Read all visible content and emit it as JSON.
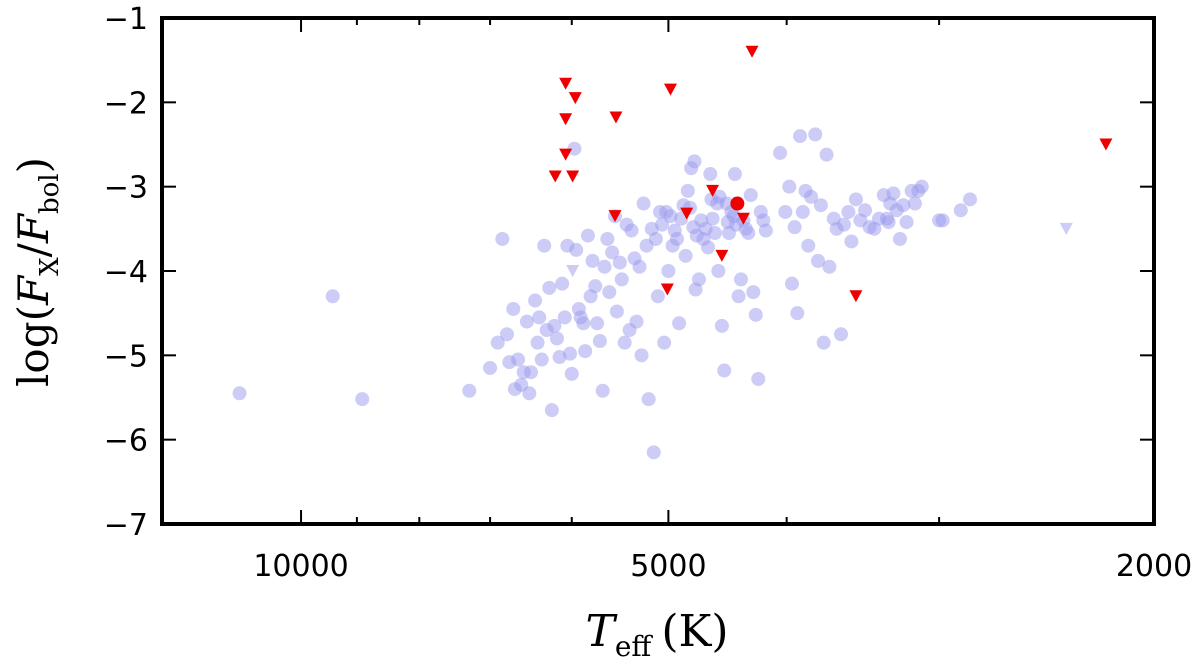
{
  "chart_data": {
    "type": "scatter",
    "title": "",
    "xlabel": {
      "symbol": "T",
      "sub": "eff",
      "unit": "(K)"
    },
    "ylabel": {
      "prefix": "log(",
      "num": "F",
      "num_sub": "X",
      "slash": "/",
      "den": "F",
      "den_sub": "bol",
      "suffix": ")"
    },
    "x_scale": "log",
    "x_reversed": true,
    "xlim": [
      13000,
      2000
    ],
    "ylim": [
      -7,
      -1
    ],
    "x_ticks": [
      {
        "value": 10000,
        "label": "10000"
      },
      {
        "value": 5000,
        "label": "5000"
      },
      {
        "value": 2000,
        "label": "2000"
      }
    ],
    "x_minor_ticks": [
      9000,
      8000,
      7000,
      6000,
      4000,
      3000
    ],
    "y_ticks": [
      {
        "value": -1,
        "label": "−1"
      },
      {
        "value": -2,
        "label": "−2"
      },
      {
        "value": -3,
        "label": "−3"
      },
      {
        "value": -4,
        "label": "−4"
      },
      {
        "value": -5,
        "label": "−5"
      },
      {
        "value": -6,
        "label": "−6"
      },
      {
        "value": -7,
        "label": "−7"
      }
    ],
    "series": [
      {
        "name": "background-detections",
        "marker": "circle",
        "color": "#9999ee",
        "opacity": 0.5,
        "points": [
          [
            11230,
            -5.45
          ],
          [
            9420,
            -4.3
          ],
          [
            8910,
            -5.52
          ],
          [
            7280,
            -5.42
          ],
          [
            7000,
            -5.15
          ],
          [
            6900,
            -4.85
          ],
          [
            6840,
            -3.62
          ],
          [
            6780,
            -4.75
          ],
          [
            6750,
            -5.08
          ],
          [
            6700,
            -4.45
          ],
          [
            6680,
            -5.4
          ],
          [
            6640,
            -5.05
          ],
          [
            6600,
            -5.35
          ],
          [
            6570,
            -5.2
          ],
          [
            6530,
            -4.6
          ],
          [
            6500,
            -5.45
          ],
          [
            6480,
            -5.2
          ],
          [
            6430,
            -4.35
          ],
          [
            6400,
            -4.85
          ],
          [
            6380,
            -4.55
          ],
          [
            6350,
            -5.05
          ],
          [
            6320,
            -3.7
          ],
          [
            6290,
            -4.7
          ],
          [
            6260,
            -4.2
          ],
          [
            6230,
            -5.65
          ],
          [
            6200,
            -4.65
          ],
          [
            6170,
            -4.8
          ],
          [
            6140,
            -5.02
          ],
          [
            6110,
            -4.15
          ],
          [
            6080,
            -4.55
          ],
          [
            6050,
            -3.7
          ],
          [
            6020,
            -4.98
          ],
          [
            6000,
            -5.22
          ],
          [
            5970,
            -2.55
          ],
          [
            5950,
            -3.75
          ],
          [
            5920,
            -4.45
          ],
          [
            5900,
            -4.55
          ],
          [
            5870,
            -4.62
          ],
          [
            5850,
            -4.95
          ],
          [
            5820,
            -3.58
          ],
          [
            5790,
            -4.3
          ],
          [
            5770,
            -3.88
          ],
          [
            5740,
            -4.18
          ],
          [
            5720,
            -4.62
          ],
          [
            5690,
            -4.83
          ],
          [
            5660,
            -5.42
          ],
          [
            5640,
            -3.95
          ],
          [
            5610,
            -3.62
          ],
          [
            5590,
            -4.25
          ],
          [
            5560,
            -3.78
          ],
          [
            5530,
            -3.35
          ],
          [
            5510,
            -4.48
          ],
          [
            5480,
            -3.9
          ],
          [
            5460,
            -4.1
          ],
          [
            5430,
            -4.85
          ],
          [
            5410,
            -3.45
          ],
          [
            5380,
            -4.7
          ],
          [
            5360,
            -3.52
          ],
          [
            5330,
            -3.85
          ],
          [
            5310,
            -4.6
          ],
          [
            5280,
            -3.95
          ],
          [
            5260,
            -5.0
          ],
          [
            5240,
            -3.2
          ],
          [
            5210,
            -3.7
          ],
          [
            5190,
            -5.52
          ],
          [
            5160,
            -3.5
          ],
          [
            5140,
            -6.15
          ],
          [
            5120,
            -3.62
          ],
          [
            5100,
            -4.3
          ],
          [
            5080,
            -3.3
          ],
          [
            5060,
            -3.45
          ],
          [
            5040,
            -4.85
          ],
          [
            5020,
            -3.3
          ],
          [
            5000,
            -4.0
          ],
          [
            4980,
            -3.35
          ],
          [
            4960,
            -3.7
          ],
          [
            4940,
            -3.52
          ],
          [
            4920,
            -3.62
          ],
          [
            4900,
            -4.62
          ],
          [
            4880,
            -3.38
          ],
          [
            4860,
            -3.22
          ],
          [
            4840,
            -3.82
          ],
          [
            4820,
            -3.05
          ],
          [
            4800,
            -3.25
          ],
          [
            4790,
            -2.78
          ],
          [
            4770,
            -3.48
          ],
          [
            4760,
            -2.7
          ],
          [
            4750,
            -4.22
          ],
          [
            4740,
            -3.58
          ],
          [
            4720,
            -4.1
          ],
          [
            4700,
            -3.4
          ],
          [
            4680,
            -3.62
          ],
          [
            4660,
            -3.5
          ],
          [
            4640,
            -3.72
          ],
          [
            4620,
            -2.85
          ],
          [
            4610,
            -3.15
          ],
          [
            4600,
            -3.38
          ],
          [
            4580,
            -3.55
          ],
          [
            4560,
            -3.2
          ],
          [
            4550,
            -4.0
          ],
          [
            4540,
            -3.12
          ],
          [
            4520,
            -4.65
          ],
          [
            4500,
            -5.18
          ],
          [
            4480,
            -3.2
          ],
          [
            4470,
            -3.42
          ],
          [
            4460,
            -3.55
          ],
          [
            4440,
            -3.3
          ],
          [
            4420,
            -3.35
          ],
          [
            4410,
            -2.85
          ],
          [
            4400,
            -3.45
          ],
          [
            4380,
            -4.3
          ],
          [
            4360,
            -4.1
          ],
          [
            4340,
            -3.4
          ],
          [
            4320,
            -3.5
          ],
          [
            4300,
            -3.55
          ],
          [
            4280,
            -3.1
          ],
          [
            4260,
            -4.25
          ],
          [
            4240,
            -4.52
          ],
          [
            4220,
            -5.28
          ],
          [
            4200,
            -3.3
          ],
          [
            4180,
            -3.4
          ],
          [
            4160,
            -3.52
          ],
          [
            4050,
            -2.6
          ],
          [
            4010,
            -3.3
          ],
          [
            3980,
            -3.0
          ],
          [
            3960,
            -4.15
          ],
          [
            3940,
            -3.48
          ],
          [
            3920,
            -4.5
          ],
          [
            3900,
            -2.4
          ],
          [
            3880,
            -3.3
          ],
          [
            3860,
            -3.05
          ],
          [
            3840,
            -3.7
          ],
          [
            3820,
            -3.12
          ],
          [
            3790,
            -2.38
          ],
          [
            3770,
            -3.88
          ],
          [
            3750,
            -3.22
          ],
          [
            3730,
            -4.85
          ],
          [
            3710,
            -2.62
          ],
          [
            3690,
            -3.95
          ],
          [
            3660,
            -3.38
          ],
          [
            3640,
            -3.5
          ],
          [
            3610,
            -4.75
          ],
          [
            3590,
            -3.45
          ],
          [
            3560,
            -3.3
          ],
          [
            3540,
            -3.65
          ],
          [
            3510,
            -3.15
          ],
          [
            3480,
            -3.4
          ],
          [
            3450,
            -3.28
          ],
          [
            3420,
            -3.48
          ],
          [
            3390,
            -3.5
          ],
          [
            3360,
            -3.38
          ],
          [
            3330,
            -3.1
          ],
          [
            3310,
            -3.38
          ],
          [
            3290,
            -3.2
          ],
          [
            3270,
            -3.08
          ],
          [
            3250,
            -3.28
          ],
          [
            3230,
            -3.62
          ],
          [
            3210,
            -3.22
          ],
          [
            3190,
            -3.42
          ],
          [
            3160,
            -3.05
          ],
          [
            3140,
            -3.2
          ],
          [
            3120,
            -3.05
          ],
          [
            3100,
            -3.0
          ],
          [
            2980,
            -3.4
          ],
          [
            2880,
            -3.28
          ],
          [
            2830,
            -3.15
          ],
          [
            3300,
            -3.42
          ],
          [
            3000,
            -3.4
          ]
        ]
      },
      {
        "name": "background-upper-limits",
        "marker": "triangle-down",
        "color": "#9999ee",
        "opacity": 0.5,
        "points": [
          [
            5990,
            -4.0
          ],
          [
            2360,
            -3.5
          ]
        ]
      },
      {
        "name": "highlighted-detection",
        "marker": "circle",
        "color": "#ee0000",
        "opacity": 1,
        "points": [
          [
            4390,
            -3.2
          ]
        ]
      },
      {
        "name": "highlighted-upper-limits",
        "marker": "triangle-down",
        "color": "#ee0000",
        "opacity": 1,
        "points": [
          [
            6070,
            -1.78
          ],
          [
            5960,
            -1.95
          ],
          [
            6070,
            -2.2
          ],
          [
            6070,
            -2.62
          ],
          [
            6190,
            -2.88
          ],
          [
            5990,
            -2.88
          ],
          [
            5520,
            -2.18
          ],
          [
            4980,
            -1.85
          ],
          [
            4270,
            -1.4
          ],
          [
            5530,
            -3.35
          ],
          [
            4830,
            -3.32
          ],
          [
            4600,
            -3.05
          ],
          [
            4340,
            -3.38
          ],
          [
            4520,
            -3.82
          ],
          [
            5010,
            -4.22
          ],
          [
            3510,
            -4.3
          ],
          [
            2190,
            -2.5
          ]
        ]
      }
    ]
  }
}
